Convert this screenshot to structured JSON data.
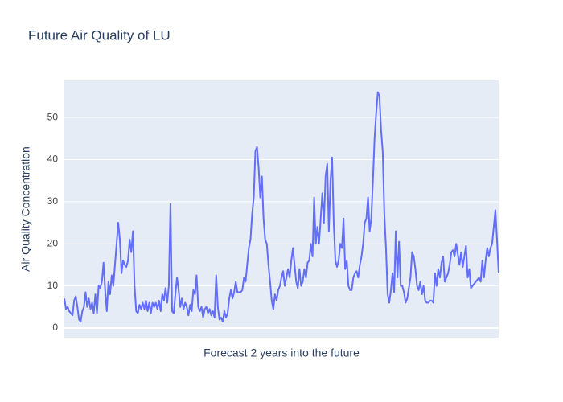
{
  "chart_data": {
    "type": "line",
    "title": "Future Air Quality of LU",
    "x_label": "Forecast 2 years into the future",
    "y_label": "Air Quality Concentration",
    "series": [
      {
        "color": "#636efa",
        "values": [
          7,
          4.5,
          5,
          4,
          3.5,
          3,
          6.5,
          7.5,
          5,
          2,
          1.5,
          4,
          5,
          8.5,
          5,
          7,
          4.5,
          6,
          3.5,
          8,
          3.5,
          10,
          9.5,
          11,
          15.5,
          9,
          4,
          11,
          8,
          12.5,
          10,
          15,
          20,
          25,
          21,
          13,
          16,
          15,
          14.5,
          16,
          21,
          18,
          23,
          10,
          4,
          3.5,
          5.5,
          4.5,
          6,
          4.5,
          6.5,
          4,
          6,
          3.5,
          6,
          5,
          6,
          4.5,
          6.5,
          4,
          8,
          6.5,
          9.5,
          6,
          10,
          29.5,
          4,
          3.5,
          8,
          12,
          9,
          5,
          7,
          4.5,
          6,
          5,
          3,
          5.5,
          4,
          9,
          8,
          12.5,
          5,
          4,
          5,
          2.5,
          4.5,
          5,
          3.5,
          4.5,
          3,
          4,
          2.5,
          12.5,
          5,
          2,
          2.5,
          1.5,
          4,
          2.5,
          3.5,
          7,
          9,
          7,
          8.5,
          11,
          8.5,
          8.5,
          8.5,
          9,
          12,
          11,
          15,
          19,
          21,
          27,
          31,
          42,
          43,
          38,
          31,
          36,
          26,
          21,
          20,
          15,
          11,
          6.5,
          4.5,
          8,
          6.5,
          9,
          10,
          12,
          13.5,
          10,
          12,
          14,
          12,
          16,
          19,
          15,
          11,
          9.5,
          14,
          10,
          11,
          14,
          12,
          15.5,
          16,
          20,
          17,
          31,
          20,
          24,
          20,
          26,
          32,
          25,
          36,
          39,
          23,
          35,
          40.5,
          25,
          16,
          14.5,
          16,
          20,
          19,
          26,
          14,
          16,
          10,
          9,
          9,
          12,
          13,
          13.5,
          12,
          15,
          17,
          20,
          25,
          26,
          31,
          23,
          26,
          35,
          45,
          51,
          56,
          55,
          47,
          42,
          27,
          19,
          8,
          6,
          9,
          13,
          8.5,
          23,
          12,
          20.5,
          10,
          10,
          8.5,
          6,
          7,
          9.5,
          12,
          18,
          17,
          14,
          10,
          9,
          11,
          8,
          10,
          6.5,
          6,
          6,
          6.5,
          6.5,
          6,
          13,
          10,
          14,
          12,
          15.5,
          17,
          11,
          12,
          13,
          15,
          18,
          18.5,
          17,
          20,
          17.5,
          15,
          18,
          14.5,
          17,
          19.5,
          12,
          14,
          9.5,
          10,
          10.5,
          11,
          11.5,
          12,
          11,
          16,
          12,
          16,
          19,
          17,
          19,
          20,
          24,
          28,
          21,
          13
        ]
      }
    ],
    "ylim": [
      -2.3,
      58.8
    ],
    "yticks": [
      0,
      10,
      20,
      30,
      40,
      50
    ],
    "grid": true
  }
}
